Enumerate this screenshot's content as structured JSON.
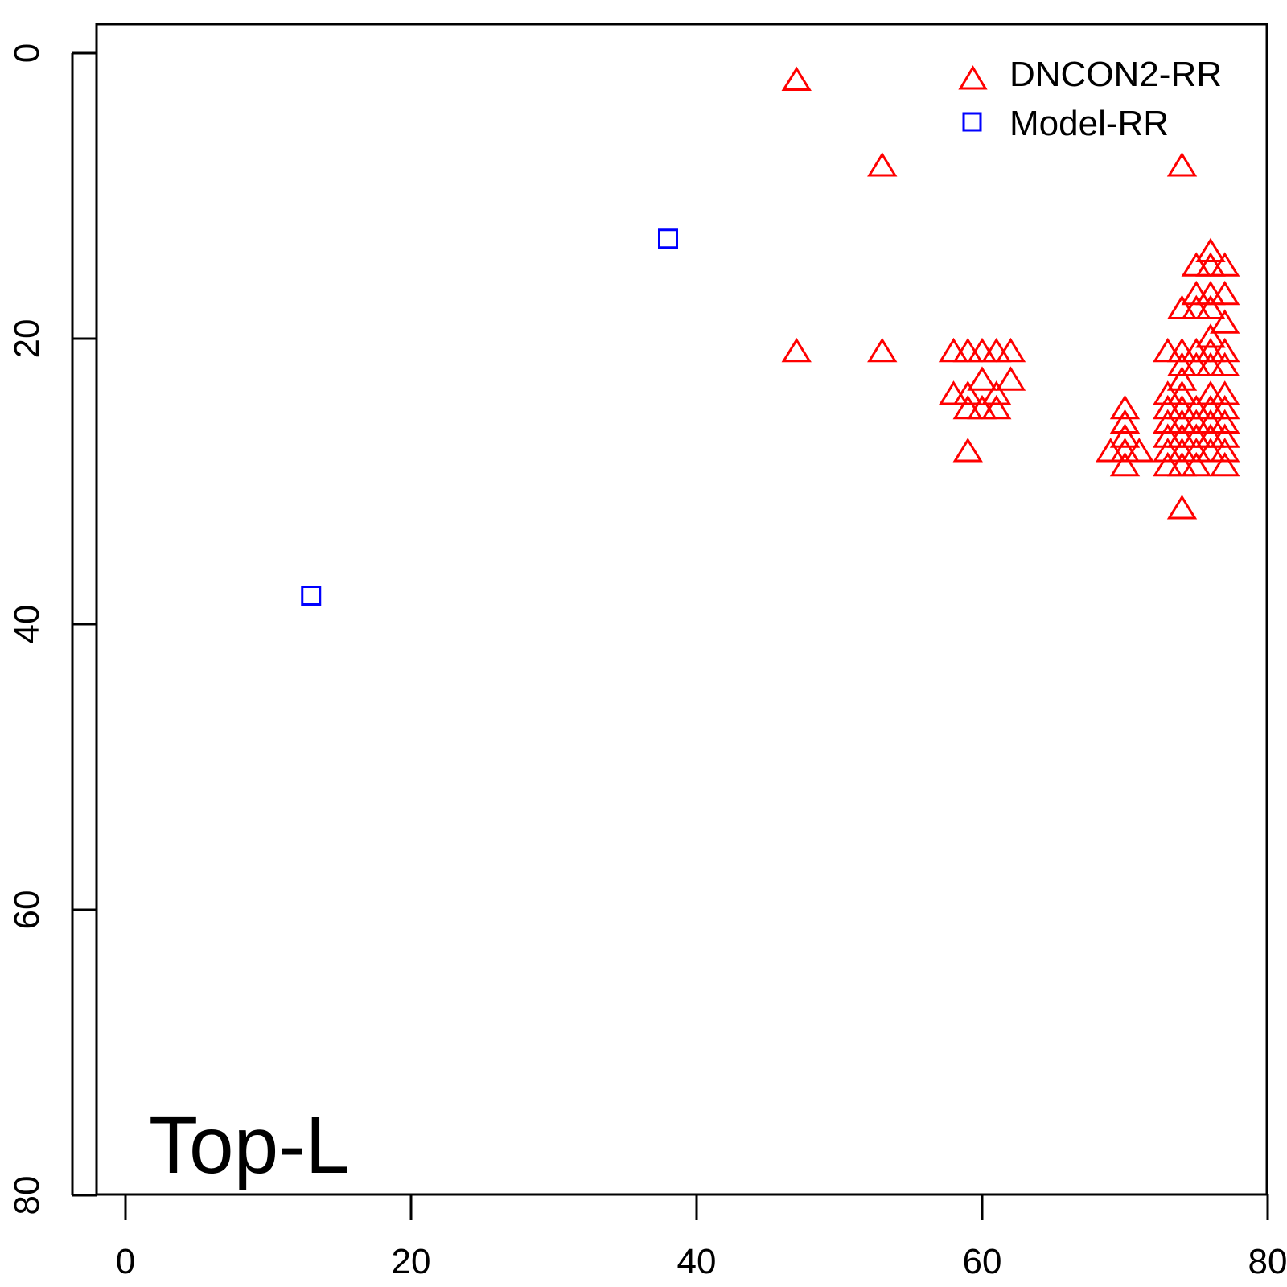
{
  "chart_data": {
    "type": "scatter",
    "title": "",
    "xlabel": "",
    "ylabel": "",
    "xlim": [
      -2,
      80
    ],
    "ylim": [
      0,
      80
    ],
    "y_reversed": true,
    "xticks": [
      "0",
      "20",
      "40",
      "60",
      "80"
    ],
    "yticks": [
      "0",
      "20",
      "40",
      "60",
      "80"
    ],
    "annotation": "Top-L",
    "legend_position": "top-right",
    "series": [
      {
        "name": "DNCON2-RR",
        "marker": "triangle",
        "color": "#ff0000",
        "points": [
          [
            47,
            2
          ],
          [
            53,
            8
          ],
          [
            74,
            8
          ],
          [
            47,
            21
          ],
          [
            53,
            21
          ],
          [
            58,
            21
          ],
          [
            59,
            21
          ],
          [
            60,
            21
          ],
          [
            61,
            21
          ],
          [
            62,
            21
          ],
          [
            60,
            23
          ],
          [
            62,
            23
          ],
          [
            58,
            24
          ],
          [
            59,
            24
          ],
          [
            61,
            24
          ],
          [
            59,
            25
          ],
          [
            60,
            25
          ],
          [
            61,
            25
          ],
          [
            59,
            28
          ],
          [
            76,
            14
          ],
          [
            75,
            15
          ],
          [
            76,
            15
          ],
          [
            77,
            15
          ],
          [
            75,
            17
          ],
          [
            76,
            17
          ],
          [
            77,
            17
          ],
          [
            74,
            18
          ],
          [
            75,
            18
          ],
          [
            76,
            18
          ],
          [
            77,
            19
          ],
          [
            76,
            20
          ],
          [
            73,
            21
          ],
          [
            74,
            21
          ],
          [
            75,
            21
          ],
          [
            76,
            21
          ],
          [
            77,
            21
          ],
          [
            74,
            22
          ],
          [
            75,
            22
          ],
          [
            76,
            22
          ],
          [
            77,
            22
          ],
          [
            74,
            23
          ],
          [
            73,
            24
          ],
          [
            74,
            24
          ],
          [
            76,
            24
          ],
          [
            77,
            24
          ],
          [
            73,
            25
          ],
          [
            74,
            25
          ],
          [
            75,
            25
          ],
          [
            76,
            25
          ],
          [
            77,
            25
          ],
          [
            73,
            26
          ],
          [
            74,
            26
          ],
          [
            75,
            26
          ],
          [
            76,
            26
          ],
          [
            77,
            26
          ],
          [
            73,
            27
          ],
          [
            74,
            27
          ],
          [
            75,
            27
          ],
          [
            76,
            27
          ],
          [
            77,
            27
          ],
          [
            73,
            28
          ],
          [
            74,
            28
          ],
          [
            75,
            28
          ],
          [
            76,
            28
          ],
          [
            77,
            28
          ],
          [
            73,
            29
          ],
          [
            74,
            29
          ],
          [
            75,
            29
          ],
          [
            77,
            29
          ],
          [
            74,
            32
          ],
          [
            70,
            25
          ],
          [
            70,
            26
          ],
          [
            70,
            27
          ],
          [
            69,
            28
          ],
          [
            70,
            28
          ],
          [
            71,
            28
          ],
          [
            70,
            29
          ]
        ]
      },
      {
        "name": "Model-RR",
        "marker": "square",
        "color": "#0000ff",
        "points": [
          [
            38,
            13
          ],
          [
            13,
            38
          ]
        ]
      }
    ]
  }
}
